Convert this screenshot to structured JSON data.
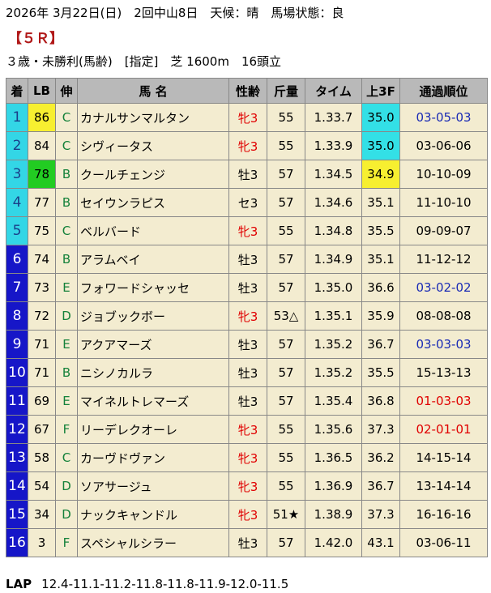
{
  "header": {
    "line1": "2026年 3月22日(日)　2回中山8日　天候：晴　馬場状態：良",
    "race": "【５Ｒ】",
    "conditions": "３歳・未勝利(馬齢)　[指定]　芝 1600m　16頭立"
  },
  "columns": [
    "着",
    "LB",
    "伸",
    "馬 名",
    "性齢",
    "斤量",
    "タイム",
    "上3F",
    "通過順位"
  ],
  "colors": {
    "header_bg": "#b9b9b9",
    "cell_bg": "#f3ecd0",
    "num_cyan": "#33d6e6",
    "num_blue": "#1616c8",
    "lb_yellow": "#f7ef30",
    "lb_green": "#22cc22",
    "f3_cyan": "#33e0e6",
    "f3_yellow": "#f7ef30",
    "sex_red": "#e00000",
    "pass_blue": "#1a2bb5",
    "pass_red": "#e00000"
  },
  "rows": [
    {
      "place": "1",
      "lb": "86",
      "lb_hl": "yellow",
      "stretch": "C",
      "name": "カナルサンマルタン",
      "sex": "牝3",
      "weight": "55",
      "time": "1.33.7",
      "f3": "35.0",
      "f3_hl": "cyan",
      "pass": "03-05-03",
      "pass_color": "blue",
      "num_color": "cyan"
    },
    {
      "place": "2",
      "lb": "84",
      "lb_hl": "",
      "stretch": "C",
      "name": "シヴィータス",
      "sex": "牝3",
      "weight": "55",
      "time": "1.33.9",
      "f3": "35.0",
      "f3_hl": "cyan",
      "pass": "03-06-06",
      "pass_color": "",
      "num_color": "cyan"
    },
    {
      "place": "3",
      "lb": "78",
      "lb_hl": "green",
      "stretch": "B",
      "name": "クールチェンジ",
      "sex": "牡3",
      "weight": "57",
      "time": "1.34.5",
      "f3": "34.9",
      "f3_hl": "yellow",
      "pass": "10-10-09",
      "pass_color": "",
      "num_color": "cyan"
    },
    {
      "place": "4",
      "lb": "77",
      "lb_hl": "",
      "stretch": "B",
      "name": "セイウンラピス",
      "sex": "セ3",
      "weight": "57",
      "time": "1.34.6",
      "f3": "35.1",
      "f3_hl": "",
      "pass": "11-10-10",
      "pass_color": "",
      "num_color": "cyan"
    },
    {
      "place": "5",
      "lb": "75",
      "lb_hl": "",
      "stretch": "C",
      "name": "ベルバード",
      "sex": "牝3",
      "weight": "55",
      "time": "1.34.8",
      "f3": "35.5",
      "f3_hl": "",
      "pass": "09-09-07",
      "pass_color": "",
      "num_color": "cyan"
    },
    {
      "place": "6",
      "lb": "74",
      "lb_hl": "",
      "stretch": "B",
      "name": "アラムベイ",
      "sex": "牡3",
      "weight": "57",
      "time": "1.34.9",
      "f3": "35.1",
      "f3_hl": "",
      "pass": "11-12-12",
      "pass_color": "",
      "num_color": "blue"
    },
    {
      "place": "7",
      "lb": "73",
      "lb_hl": "",
      "stretch": "E",
      "name": "フォワードシャッセ",
      "sex": "牡3",
      "weight": "57",
      "time": "1.35.0",
      "f3": "36.6",
      "f3_hl": "",
      "pass": "03-02-02",
      "pass_color": "blue",
      "num_color": "blue"
    },
    {
      "place": "8",
      "lb": "72",
      "lb_hl": "",
      "stretch": "D",
      "name": "ジョブックボー",
      "sex": "牝3",
      "weight": "53△",
      "time": "1.35.1",
      "f3": "35.9",
      "f3_hl": "",
      "pass": "08-08-08",
      "pass_color": "",
      "num_color": "blue"
    },
    {
      "place": "9",
      "lb": "71",
      "lb_hl": "",
      "stretch": "E",
      "name": "アクアマーズ",
      "sex": "牡3",
      "weight": "57",
      "time": "1.35.2",
      "f3": "36.7",
      "f3_hl": "",
      "pass": "03-03-03",
      "pass_color": "blue",
      "num_color": "blue"
    },
    {
      "place": "10",
      "lb": "71",
      "lb_hl": "",
      "stretch": "B",
      "name": "ニシノカルラ",
      "sex": "牡3",
      "weight": "57",
      "time": "1.35.2",
      "f3": "35.5",
      "f3_hl": "",
      "pass": "15-13-13",
      "pass_color": "",
      "num_color": "blue"
    },
    {
      "place": "11",
      "lb": "69",
      "lb_hl": "",
      "stretch": "E",
      "name": "マイネルトレマーズ",
      "sex": "牡3",
      "weight": "57",
      "time": "1.35.4",
      "f3": "36.8",
      "f3_hl": "",
      "pass": "01-03-03",
      "pass_color": "red",
      "num_color": "blue"
    },
    {
      "place": "12",
      "lb": "67",
      "lb_hl": "",
      "stretch": "F",
      "name": "リーデレクオーレ",
      "sex": "牝3",
      "weight": "55",
      "time": "1.35.6",
      "f3": "37.3",
      "f3_hl": "",
      "pass": "02-01-01",
      "pass_color": "red",
      "num_color": "blue"
    },
    {
      "place": "13",
      "lb": "58",
      "lb_hl": "",
      "stretch": "C",
      "name": "カーヴドヴァン",
      "sex": "牝3",
      "weight": "55",
      "time": "1.36.5",
      "f3": "36.2",
      "f3_hl": "",
      "pass": "14-15-14",
      "pass_color": "",
      "num_color": "blue"
    },
    {
      "place": "14",
      "lb": "54",
      "lb_hl": "",
      "stretch": "D",
      "name": "ソアサージュ",
      "sex": "牝3",
      "weight": "55",
      "time": "1.36.9",
      "f3": "36.7",
      "f3_hl": "",
      "pass": "13-14-14",
      "pass_color": "",
      "num_color": "blue"
    },
    {
      "place": "15",
      "lb": "34",
      "lb_hl": "",
      "stretch": "D",
      "name": "ナックキャンドル",
      "sex": "牝3",
      "weight": "51★",
      "time": "1.38.9",
      "f3": "37.3",
      "f3_hl": "",
      "pass": "16-16-16",
      "pass_color": "",
      "num_color": "blue"
    },
    {
      "place": "16",
      "lb": "3",
      "lb_hl": "",
      "stretch": "F",
      "name": "スペシャルシラー",
      "sex": "牡3",
      "weight": "57",
      "time": "1.42.0",
      "f3": "43.1",
      "f3_hl": "",
      "pass": "03-06-11",
      "pass_color": "",
      "num_color": "blue"
    }
  ],
  "lap": {
    "label": "LAP",
    "values": "12.4-11.1-11.2-11.8-11.8-11.9-12.0-11.5"
  }
}
